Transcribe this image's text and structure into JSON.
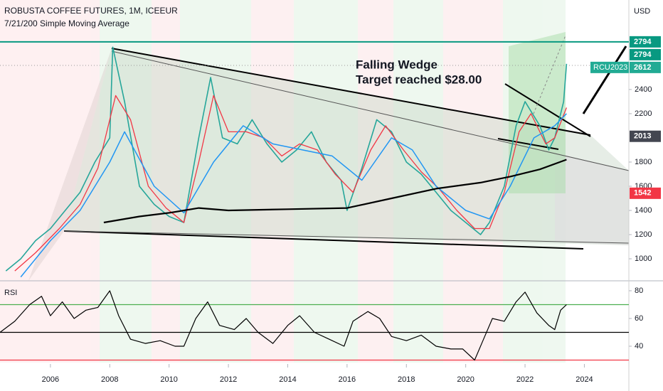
{
  "chart_data": [
    {
      "type": "line",
      "title": "ROBUSTA COFFEE FUTURES, 1M, ICEEUR",
      "subtitle": "7/21/200 Simple Moving Average",
      "unit": "USD",
      "annotations": [
        "Falling Wedge",
        "Target reached $28.00"
      ],
      "xlim": [
        2004.3,
        2025.5
      ],
      "xticks": [
        2006,
        2008,
        2010,
        2012,
        2014,
        2016,
        2018,
        2020,
        2022,
        2024
      ],
      "ylim": [
        818,
        3140
      ],
      "yticks": [
        1000,
        1200,
        1400,
        1600,
        1800,
        2200,
        2400
      ],
      "hline": {
        "value": 2794,
        "color": "#089981"
      },
      "price_labels": [
        {
          "value": 2794,
          "color": "#089981"
        },
        {
          "value": 2794,
          "color": "#089981"
        },
        {
          "name": "RCU2023",
          "value": 2612,
          "color": "#22ab94"
        },
        {
          "value": 2013,
          "color": "#434651"
        },
        {
          "value": 1542,
          "color": "#f23645"
        }
      ],
      "series": [
        {
          "color": "#26a69a",
          "width": 1.6,
          "x": [
            2004.5,
            2005.0,
            2005.5,
            2006.0,
            2006.5,
            2007.0,
            2007.5,
            2008.0,
            2008.1,
            2008.5,
            2009.0,
            2009.5,
            2010.0,
            2010.5,
            2011.0,
            2011.4,
            2011.8,
            2012.3,
            2012.8,
            2013.3,
            2013.8,
            2014.3,
            2014.8,
            2015.3,
            2015.8,
            2016.0,
            2016.5,
            2017.0,
            2017.5,
            2018.0,
            2018.5,
            2019.0,
            2019.5,
            2020.0,
            2020.5,
            2020.8,
            2021.3,
            2021.7,
            2022.0,
            2022.5,
            2022.8,
            2023.0,
            2023.3,
            2023.4
          ],
          "values": [
            900,
            1000,
            1150,
            1250,
            1400,
            1550,
            1800,
            2000,
            2750,
            2300,
            1600,
            1450,
            1350,
            1300,
            2000,
            2500,
            2000,
            1950,
            2150,
            1950,
            1800,
            1900,
            2050,
            1800,
            1650,
            1400,
            1750,
            2150,
            2050,
            1800,
            1700,
            1550,
            1400,
            1300,
            1200,
            1300,
            1600,
            2100,
            2300,
            2100,
            1900,
            2000,
            2300,
            2612
          ]
        },
        {
          "color": "#f23645",
          "width": 1.3,
          "x": [
            2004.8,
            2005.5,
            2006.3,
            2007.0,
            2007.6,
            2008.2,
            2008.7,
            2009.3,
            2009.9,
            2010.5,
            2011.0,
            2011.5,
            2012.0,
            2012.6,
            2013.2,
            2013.8,
            2014.4,
            2015.0,
            2015.6,
            2016.2,
            2016.8,
            2017.3,
            2017.9,
            2018.5,
            2019.1,
            2019.7,
            2020.3,
            2020.8,
            2021.3,
            2021.8,
            2022.2,
            2022.7,
            2023.0,
            2023.4
          ],
          "values": [
            900,
            1050,
            1250,
            1450,
            1750,
            2350,
            2150,
            1600,
            1420,
            1300,
            1800,
            2350,
            2050,
            2050,
            2000,
            1850,
            1950,
            1900,
            1700,
            1550,
            1900,
            2100,
            1900,
            1720,
            1580,
            1400,
            1250,
            1250,
            1550,
            2050,
            2200,
            1950,
            2000,
            2250
          ]
        },
        {
          "color": "#2196f3",
          "width": 1.5,
          "x": [
            2005.0,
            2006.0,
            2007.0,
            2008.0,
            2008.5,
            2009.5,
            2010.5,
            2011.5,
            2012.5,
            2013.5,
            2014.5,
            2015.5,
            2016.5,
            2017.5,
            2018.2,
            2019.0,
            2020.0,
            2020.8,
            2021.5,
            2022.3,
            2023.0,
            2023.4
          ],
          "values": [
            850,
            1150,
            1400,
            1800,
            2050,
            1600,
            1380,
            1800,
            2100,
            1950,
            1900,
            1850,
            1650,
            2000,
            1900,
            1600,
            1400,
            1330,
            1600,
            2000,
            2100,
            2200
          ]
        },
        {
          "color": "#000000",
          "width": 2.2,
          "x": [
            2007.8,
            2009.0,
            2010.0,
            2011.0,
            2012.0,
            2014.0,
            2016.0,
            2017.5,
            2019.0,
            2020.5,
            2021.5,
            2022.5,
            2023.4
          ],
          "values": [
            1300,
            1350,
            1380,
            1420,
            1400,
            1410,
            1420,
            1500,
            1580,
            1630,
            1680,
            1740,
            1820
          ]
        }
      ]
    },
    {
      "type": "line",
      "title": "RSI",
      "xlim": [
        2004.3,
        2025.5
      ],
      "ylim": [
        28.2,
        84.6
      ],
      "yticks": [
        40,
        60,
        80
      ],
      "levels": [
        {
          "value": 70,
          "color": "#4caf50"
        },
        {
          "value": 50,
          "color": "#000000"
        },
        {
          "value": 30,
          "color": "#f23645"
        }
      ],
      "series": [
        {
          "color": "#000000",
          "width": 1.2,
          "x": [
            2004.3,
            2004.8,
            2005.3,
            2005.7,
            2006.0,
            2006.4,
            2006.8,
            2007.2,
            2007.6,
            2008.0,
            2008.3,
            2008.7,
            2009.2,
            2009.7,
            2010.2,
            2010.5,
            2010.9,
            2011.3,
            2011.7,
            2012.2,
            2012.6,
            2013.0,
            2013.5,
            2014.0,
            2014.4,
            2014.9,
            2015.4,
            2015.9,
            2016.2,
            2016.7,
            2017.1,
            2017.5,
            2018.0,
            2018.5,
            2019.0,
            2019.5,
            2019.9,
            2020.3,
            2020.6,
            2020.9,
            2021.3,
            2021.7,
            2022.0,
            2022.4,
            2022.8,
            2023.0,
            2023.2,
            2023.4
          ],
          "values": [
            50,
            58,
            70,
            76,
            62,
            72,
            60,
            66,
            68,
            80,
            62,
            45,
            42,
            44,
            40,
            40,
            60,
            72,
            55,
            52,
            60,
            50,
            42,
            55,
            62,
            50,
            45,
            40,
            58,
            65,
            60,
            47,
            44,
            48,
            40,
            38,
            38,
            30,
            45,
            60,
            58,
            72,
            79,
            64,
            55,
            52,
            66,
            70
          ]
        }
      ]
    }
  ]
}
